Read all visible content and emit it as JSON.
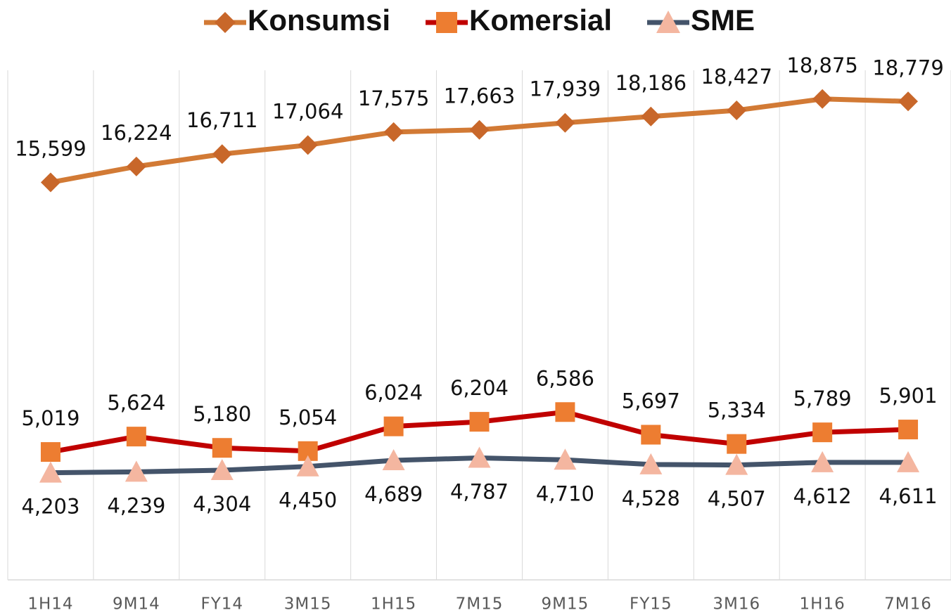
{
  "chart_data": {
    "type": "line",
    "categories": [
      "1H14",
      "9M14",
      "FY14",
      "3M15",
      "1H15",
      "7M15",
      "9M15",
      "FY15",
      "3M16",
      "1H16",
      "7M16"
    ],
    "ylim": [
      0,
      20000
    ],
    "series": [
      {
        "name": "Konsumsi",
        "color": "#d27a35",
        "marker_color": "#c8672a",
        "marker": "diamond",
        "values": [
          15599,
          16224,
          16711,
          17064,
          17575,
          17663,
          17939,
          18186,
          18427,
          18875,
          18779
        ],
        "value_labels": [
          "15,599",
          "16,224",
          "16,711",
          "17,064",
          "17,575",
          "17,663",
          "17,939",
          "18,186",
          "18,427",
          "18,875",
          "18,779"
        ]
      },
      {
        "name": "Komersial",
        "color": "#c00000",
        "marker_color": "#ed7d31",
        "marker": "square",
        "values": [
          5019,
          5624,
          5180,
          5054,
          6024,
          6204,
          6586,
          5697,
          5334,
          5789,
          5901
        ],
        "value_labels": [
          "5,019",
          "5,624",
          "5,180",
          "5,054",
          "6,024",
          "6,204",
          "6,586",
          "5,697",
          "5,334",
          "5,789",
          "5,901"
        ]
      },
      {
        "name": "SME",
        "color": "#44546a",
        "marker_color": "#f4b6a0",
        "marker": "triangle",
        "values": [
          4203,
          4239,
          4304,
          4450,
          4689,
          4787,
          4710,
          4528,
          4507,
          4612,
          4611
        ],
        "value_labels": [
          "4,203",
          "4,239",
          "4,304",
          "4,450",
          "4,689",
          "4,787",
          "4,710",
          "4,528",
          "4,507",
          "4,612",
          "4,611"
        ]
      }
    ]
  }
}
